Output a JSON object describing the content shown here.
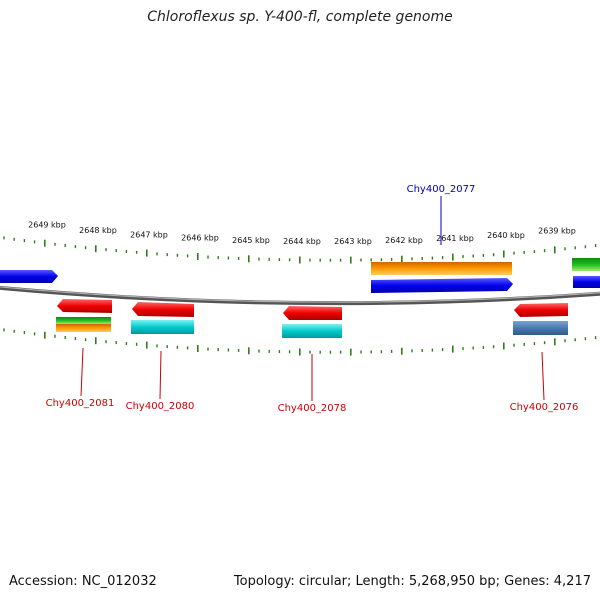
{
  "title": "Chloroflexus sp. Y-400-fl, complete genome",
  "footer": {
    "accession": "Accession: NC_012032",
    "info": "Topology: circular; Length: 5,268,950 bp; Genes: 4,217"
  },
  "scale": {
    "ticks": [
      {
        "label": "2649 kbp"
      },
      {
        "label": "2648 kbp"
      },
      {
        "label": "2647 kbp"
      },
      {
        "label": "2646 kbp"
      },
      {
        "label": "2645 kbp"
      },
      {
        "label": "2644 kbp"
      },
      {
        "label": "2643 kbp"
      },
      {
        "label": "2642 kbp"
      },
      {
        "label": "2641 kbp"
      },
      {
        "label": "2640 kbp"
      },
      {
        "label": "2639 kbp"
      }
    ]
  },
  "gene_labels": [
    {
      "text": "Chy400_2077",
      "color": "#0000bb"
    },
    {
      "text": "Chy400_2081",
      "color": "#cc0000"
    },
    {
      "text": "Chy400_2080",
      "color": "#cc0000"
    },
    {
      "text": "Chy400_2078",
      "color": "#cc0000"
    },
    {
      "text": "Chy400_2076",
      "color": "#cc0000"
    }
  ],
  "colors": {
    "backbone": "#7a7a7a",
    "tick": "#2e7d1e",
    "cds": "#ee0000",
    "cds_blue": "#0000ee",
    "gene": "#00cccc",
    "orange": "#ff9900",
    "green": "#22bb22",
    "steelblue": "#4a7ab0"
  }
}
